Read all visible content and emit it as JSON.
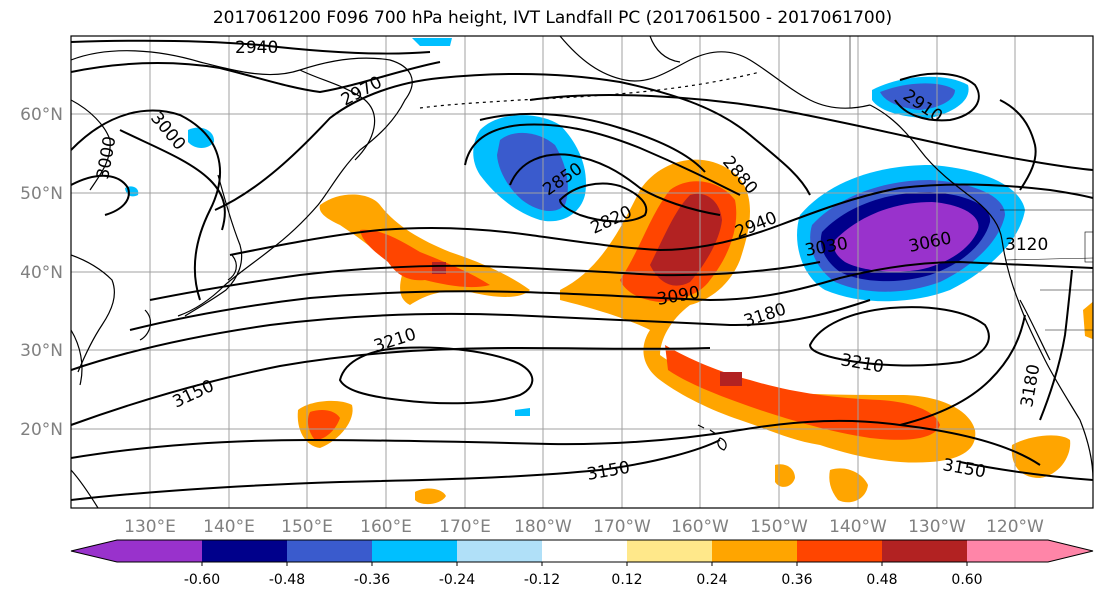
{
  "title": "2017061200 F096 700 hPa height, IVT Landfall PC (2017061500 - 2017061700)",
  "lat_labels": [
    "60°N",
    "50°N",
    "40°N",
    "30°N",
    "20°N"
  ],
  "lon_labels": [
    "130°E",
    "140°E",
    "150°E",
    "160°E",
    "170°E",
    "180°W",
    "170°W",
    "160°W",
    "150°W",
    "140°W",
    "130°W",
    "120°W"
  ],
  "contour_labels": [
    "2940",
    "2970",
    "3000",
    "3000",
    "2850",
    "2820",
    "2880",
    "2940",
    "3030",
    "3060",
    "3120",
    "2910",
    "3090",
    "3180",
    "3210",
    "3210",
    "3150",
    "3150",
    "3150",
    "3180"
  ],
  "colorbar": {
    "levels": [
      "-0.60",
      "-0.48",
      "-0.36",
      "-0.24",
      "-0.12",
      "0.12",
      "0.24",
      "0.36",
      "0.48",
      "0.60"
    ],
    "colors": [
      "#9932cc",
      "#00008b",
      "#3a5bcd",
      "#00bfff",
      "#b0e0f8",
      "#ffffff",
      "#ffe88a",
      "#ffa500",
      "#ff4500",
      "#b22222",
      "#ff85a8"
    ]
  }
}
